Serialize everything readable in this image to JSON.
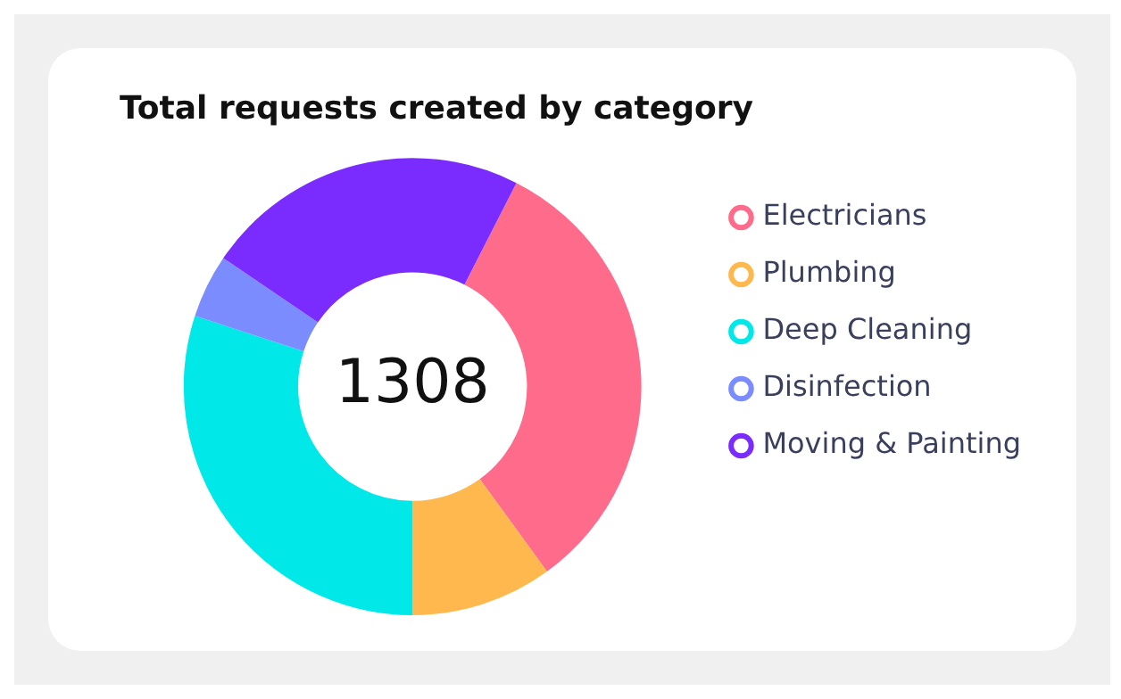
{
  "chart_data": {
    "type": "donut",
    "title": "Total requests created by category",
    "categories": [
      "Electricians",
      "Plumbing",
      "Deep Cleaning",
      "Disinfection",
      "Moving & Painting"
    ],
    "values": [
      32.5,
      10,
      30,
      4.5,
      23
    ],
    "colors": [
      "#ff6b8a",
      "#ffb84d",
      "#00e8e8",
      "#7b8cff",
      "#7a2cff"
    ],
    "annotations": [
      "1308"
    ],
    "legend": "right"
  }
}
